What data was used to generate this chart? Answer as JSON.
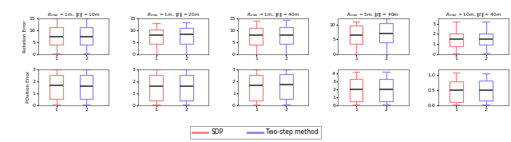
{
  "titles": [
    "$R_{max}$ = 1m, $\\|t\\|$ = 10m",
    "$R_{max}$ = 1m, $\\|t\\|$ = 20m",
    "$R_{max}$ = 1m, $\\|t\\|$ = 40m",
    "$R_{max}$ = 5m, $\\|t\\|$ = 40m",
    "$R_{max}$ = 10m, $\\|t\\|$ = 40m"
  ],
  "rotation_row": [
    {
      "sdp": {
        "whislo": 0.2,
        "q1": 4.0,
        "med": 7.5,
        "q3": 11.5,
        "whishi": 15.0
      },
      "two": {
        "whislo": 0.2,
        "q1": 4.0,
        "med": 7.5,
        "q3": 11.5,
        "whishi": 15.0
      },
      "ylim": [
        0,
        15
      ],
      "yticks": [
        0,
        5,
        10,
        15
      ]
    },
    {
      "sdp": {
        "whislo": 0.1,
        "q1": 4.5,
        "med": 8.0,
        "q3": 10.5,
        "whishi": 13.0
      },
      "two": {
        "whislo": 0.1,
        "q1": 4.5,
        "med": 8.5,
        "q3": 11.0,
        "whishi": 13.5
      },
      "ylim": [
        0,
        15
      ],
      "yticks": [
        0,
        5,
        10,
        15
      ]
    },
    {
      "sdp": {
        "whislo": 0.1,
        "q1": 4.0,
        "med": 8.0,
        "q3": 11.0,
        "whishi": 14.0
      },
      "two": {
        "whislo": 0.1,
        "q1": 4.5,
        "med": 8.0,
        "q3": 11.5,
        "whishi": 14.5
      },
      "ylim": [
        0,
        15
      ],
      "yticks": [
        0,
        5,
        10,
        15
      ]
    },
    {
      "sdp": {
        "whislo": 0.1,
        "q1": 3.5,
        "med": 6.5,
        "q3": 9.5,
        "whishi": 11.0
      },
      "two": {
        "whislo": 0.1,
        "q1": 4.0,
        "med": 7.0,
        "q3": 10.5,
        "whishi": 12.0
      },
      "ylim": [
        0,
        12
      ],
      "yticks": [
        0,
        5,
        10
      ]
    },
    {
      "sdp": {
        "whislo": 0.05,
        "q1": 0.8,
        "med": 1.5,
        "q3": 2.0,
        "whishi": 3.2
      },
      "two": {
        "whislo": 0.05,
        "q1": 0.9,
        "med": 1.5,
        "q3": 2.0,
        "whishi": 3.2
      },
      "ylim": [
        0,
        3.5
      ],
      "yticks": [
        0,
        1,
        2,
        3
      ]
    }
  ],
  "position_row": [
    {
      "sdp": {
        "whislo": 0.05,
        "q1": 0.5,
        "med": 1.65,
        "q3": 2.55,
        "whishi": 3.0
      },
      "two": {
        "whislo": 0.05,
        "q1": 0.5,
        "med": 1.6,
        "q3": 2.5,
        "whishi": 3.0
      },
      "ylim": [
        0,
        3
      ],
      "yticks": [
        0,
        1,
        2,
        3
      ]
    },
    {
      "sdp": {
        "whislo": 0.05,
        "q1": 0.4,
        "med": 1.6,
        "q3": 2.5,
        "whishi": 3.0
      },
      "two": {
        "whislo": 0.05,
        "q1": 0.4,
        "med": 1.6,
        "q3": 2.5,
        "whishi": 3.0
      },
      "ylim": [
        0,
        3
      ],
      "yticks": [
        0,
        1,
        2,
        3
      ]
    },
    {
      "sdp": {
        "whislo": 0.05,
        "q1": 0.4,
        "med": 1.65,
        "q3": 2.5,
        "whishi": 3.0
      },
      "two": {
        "whislo": 0.05,
        "q1": 0.5,
        "med": 1.7,
        "q3": 2.6,
        "whishi": 3.0
      },
      "ylim": [
        0,
        3
      ],
      "yticks": [
        0,
        1,
        2,
        3
      ]
    },
    {
      "sdp": {
        "whislo": 0.05,
        "q1": 0.5,
        "med": 2.0,
        "q3": 3.3,
        "whishi": 4.2
      },
      "two": {
        "whislo": 0.05,
        "q1": 0.5,
        "med": 2.0,
        "q3": 3.3,
        "whishi": 4.2
      },
      "ylim": [
        0,
        4.5
      ],
      "yticks": [
        0,
        1,
        2,
        3,
        4
      ]
    },
    {
      "sdp": {
        "whislo": 0.02,
        "q1": 0.1,
        "med": 0.5,
        "q3": 0.8,
        "whishi": 1.1
      },
      "two": {
        "whislo": 0.02,
        "q1": 0.15,
        "med": 0.5,
        "q3": 0.82,
        "whishi": 1.05
      },
      "ylim": [
        0,
        1.2
      ],
      "yticks": [
        0,
        0.5,
        1.0
      ]
    }
  ],
  "sdp_color": "#F08080",
  "two_color": "#8888EE",
  "bg_color": "#FFFFFF",
  "median_color": "#333333",
  "ylabel_rotation": "Rotation Error",
  "ylabel_position": "POsition Error",
  "legend_sdp": "SDP",
  "legend_two": "Two-step method"
}
